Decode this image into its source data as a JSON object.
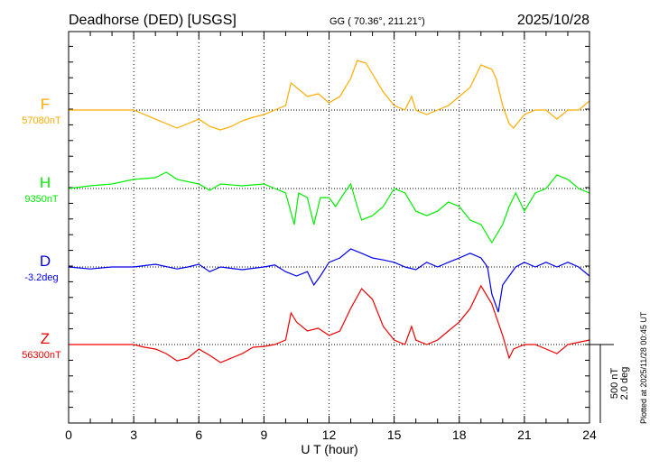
{
  "header": {
    "station": "Deadhorse (DED)  [USGS]",
    "coords": "GG ( 70.36°, 211.21°)",
    "date": "2025/10/28"
  },
  "footer": {
    "plotted": "Plotted at 2025/11/28 00:45 UT"
  },
  "scale_bar": {
    "nt_label": "500 nT",
    "deg_label": "2.0 deg",
    "nt": 500,
    "deg": 2.0
  },
  "chart_data": {
    "type": "line",
    "xlabel": "U T (hour)",
    "xlim": [
      0,
      24
    ],
    "xticks": [
      "0",
      "3",
      "6",
      "9",
      "12",
      "15",
      "18",
      "21",
      "24"
    ],
    "grid": true,
    "series": [
      {
        "name": "F",
        "baseline_label": "57080nT",
        "unit": "nT",
        "color": "#ffaa00",
        "points": [
          [
            0,
            0
          ],
          [
            1,
            0
          ],
          [
            2,
            0
          ],
          [
            3,
            0
          ],
          [
            3.5,
            -29
          ],
          [
            4,
            -58
          ],
          [
            4.5,
            -86
          ],
          [
            5,
            -115
          ],
          [
            5.5,
            -86
          ],
          [
            6,
            -58
          ],
          [
            6.5,
            -104
          ],
          [
            7,
            -127
          ],
          [
            7.5,
            -104
          ],
          [
            8,
            -69
          ],
          [
            8.5,
            -46
          ],
          [
            9,
            -29
          ],
          [
            9.5,
            0
          ],
          [
            10,
            29
          ],
          [
            10.25,
            173
          ],
          [
            10.5,
            144
          ],
          [
            11,
            86
          ],
          [
            11.5,
            104
          ],
          [
            12,
            46
          ],
          [
            12.5,
            86
          ],
          [
            13,
            201
          ],
          [
            13.3,
            316
          ],
          [
            13.7,
            299
          ],
          [
            14,
            230
          ],
          [
            14.5,
            115
          ],
          [
            15,
            29
          ],
          [
            15.5,
            0
          ],
          [
            15.8,
            86
          ],
          [
            16,
            0
          ],
          [
            16.5,
            -29
          ],
          [
            17,
            0
          ],
          [
            17.5,
            29
          ],
          [
            18,
            86
          ],
          [
            18.5,
            144
          ],
          [
            19,
            288
          ],
          [
            19.5,
            259
          ],
          [
            19.7,
            201
          ],
          [
            20,
            29
          ],
          [
            20.3,
            -86
          ],
          [
            20.5,
            -115
          ],
          [
            21,
            -29
          ],
          [
            21.5,
            0
          ],
          [
            22,
            0
          ],
          [
            22.5,
            -58
          ],
          [
            23,
            0
          ],
          [
            23.5,
            0
          ],
          [
            24,
            58
          ]
        ]
      },
      {
        "name": "H",
        "baseline_label": "9350nT",
        "unit": "nT",
        "color": "#00ee00",
        "points": [
          [
            0,
            0
          ],
          [
            1,
            17
          ],
          [
            2,
            29
          ],
          [
            3,
            58
          ],
          [
            4,
            69
          ],
          [
            4.5,
            104
          ],
          [
            5,
            58
          ],
          [
            6,
            29
          ],
          [
            6.5,
            -12
          ],
          [
            7,
            29
          ],
          [
            8,
            17
          ],
          [
            9,
            29
          ],
          [
            9.5,
            0
          ],
          [
            10,
            -29
          ],
          [
            10.4,
            -230
          ],
          [
            10.6,
            -29
          ],
          [
            11,
            -58
          ],
          [
            11.3,
            -230
          ],
          [
            11.6,
            -58
          ],
          [
            12,
            -58
          ],
          [
            12.3,
            -115
          ],
          [
            12.7,
            -29
          ],
          [
            13,
            29
          ],
          [
            13.3,
            -115
          ],
          [
            13.5,
            -201
          ],
          [
            14,
            -173
          ],
          [
            14.5,
            -115
          ],
          [
            15,
            0
          ],
          [
            15.5,
            -29
          ],
          [
            16,
            -144
          ],
          [
            16.5,
            -173
          ],
          [
            17,
            -144
          ],
          [
            17.5,
            -86
          ],
          [
            18,
            -115
          ],
          [
            18.5,
            -201
          ],
          [
            19,
            -230
          ],
          [
            19.5,
            -345
          ],
          [
            20,
            -230
          ],
          [
            20.3,
            -115
          ],
          [
            20.6,
            -29
          ],
          [
            21,
            -144
          ],
          [
            21.5,
            -29
          ],
          [
            22,
            0
          ],
          [
            22.5,
            86
          ],
          [
            23,
            58
          ],
          [
            23.5,
            0
          ],
          [
            24,
            -29
          ]
        ]
      },
      {
        "name": "D",
        "baseline_label": "-3.2deg",
        "unit": "deg",
        "color": "#0000ee",
        "points": [
          [
            0,
            0
          ],
          [
            1,
            -0.05
          ],
          [
            2,
            0
          ],
          [
            3,
            0
          ],
          [
            4,
            0.07
          ],
          [
            5,
            -0.05
          ],
          [
            5.5,
            0
          ],
          [
            6,
            0.07
          ],
          [
            6.5,
            -0.12
          ],
          [
            7,
            0
          ],
          [
            8,
            -0.07
          ],
          [
            9,
            0
          ],
          [
            9.5,
            0.05
          ],
          [
            10,
            -0.12
          ],
          [
            10.5,
            -0.23
          ],
          [
            11,
            -0.12
          ],
          [
            11.3,
            -0.46
          ],
          [
            11.6,
            -0.23
          ],
          [
            12,
            0.12
          ],
          [
            12.5,
            0.23
          ],
          [
            13,
            0.46
          ],
          [
            13.5,
            0.35
          ],
          [
            14,
            0.23
          ],
          [
            14.5,
            0.18
          ],
          [
            15,
            0.12
          ],
          [
            15.5,
            0
          ],
          [
            16,
            -0.07
          ],
          [
            16.5,
            0.12
          ],
          [
            17,
            0
          ],
          [
            17.5,
            0.12
          ],
          [
            18,
            0.23
          ],
          [
            18.5,
            0.35
          ],
          [
            19,
            0.23
          ],
          [
            19.3,
            0
          ],
          [
            19.5,
            -0.69
          ],
          [
            19.8,
            -1.15
          ],
          [
            20,
            -0.46
          ],
          [
            20.3,
            -0.23
          ],
          [
            20.6,
            0
          ],
          [
            21,
            0.12
          ],
          [
            21.5,
            0
          ],
          [
            22,
            0.12
          ],
          [
            22.5,
            0
          ],
          [
            23,
            0.12
          ],
          [
            23.5,
            0
          ],
          [
            24,
            -0.23
          ]
        ]
      },
      {
        "name": "Z",
        "baseline_label": "56300nT",
        "unit": "nT",
        "color": "#ee0000",
        "points": [
          [
            0,
            0
          ],
          [
            2,
            0
          ],
          [
            3,
            0
          ],
          [
            3.5,
            -17
          ],
          [
            4,
            -29
          ],
          [
            4.5,
            -58
          ],
          [
            5,
            -104
          ],
          [
            5.5,
            -86
          ],
          [
            6,
            -29
          ],
          [
            6.5,
            -69
          ],
          [
            7,
            -115
          ],
          [
            7.5,
            -86
          ],
          [
            8,
            -58
          ],
          [
            8.5,
            -17
          ],
          [
            9,
            -12
          ],
          [
            9.5,
            0
          ],
          [
            10,
            29
          ],
          [
            10.25,
            201
          ],
          [
            10.5,
            144
          ],
          [
            11,
            86
          ],
          [
            11.5,
            104
          ],
          [
            12,
            58
          ],
          [
            12.5,
            86
          ],
          [
            13,
            230
          ],
          [
            13.5,
            356
          ],
          [
            14,
            288
          ],
          [
            14.5,
            115
          ],
          [
            15,
            29
          ],
          [
            15.5,
            0
          ],
          [
            15.8,
            115
          ],
          [
            16,
            29
          ],
          [
            16.5,
            0
          ],
          [
            17,
            29
          ],
          [
            17.5,
            86
          ],
          [
            18,
            144
          ],
          [
            18.5,
            230
          ],
          [
            19,
            374
          ],
          [
            19.5,
            259
          ],
          [
            20,
            58
          ],
          [
            20.3,
            -86
          ],
          [
            20.5,
            -29
          ],
          [
            21,
            0
          ],
          [
            21.5,
            0
          ],
          [
            22,
            -29
          ],
          [
            22.5,
            -58
          ],
          [
            23,
            0
          ],
          [
            24,
            29
          ]
        ]
      }
    ]
  }
}
